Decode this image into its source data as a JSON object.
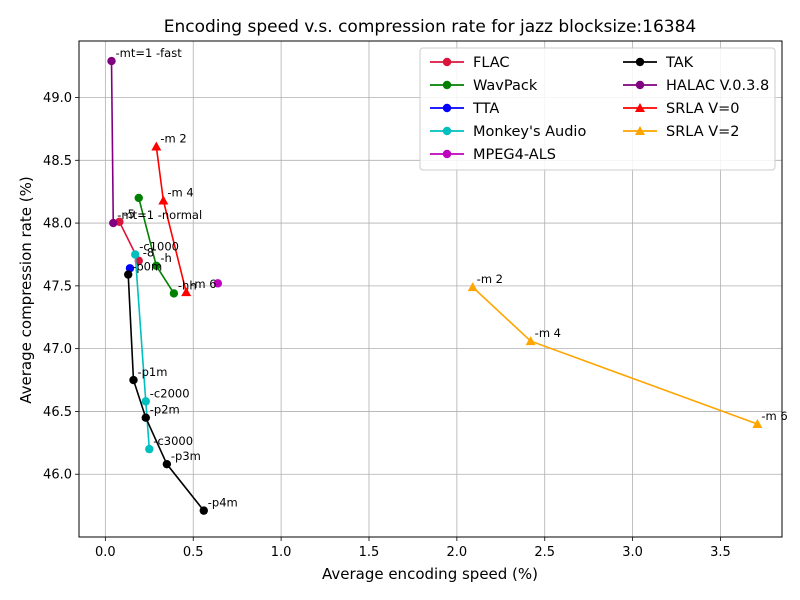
{
  "chart_data": {
    "type": "line",
    "title": "Encoding speed v.s. compression rate for jazz blocksize:16384",
    "xlabel": "Average encoding speed (%)",
    "ylabel": "Average compression rate (%)",
    "xlim": [
      -0.15,
      3.85
    ],
    "ylim": [
      45.5,
      49.45
    ],
    "xticks": [
      "0.0",
      "0.5",
      "1.0",
      "1.5",
      "2.0",
      "2.5",
      "3.0",
      "3.5"
    ],
    "yticks": [
      "46.0",
      "46.5",
      "47.0",
      "47.5",
      "48.0",
      "48.5",
      "49.0"
    ],
    "grid": true,
    "legend_position": "upper-right",
    "series": [
      {
        "name": "FLAC",
        "color": "#dc143c",
        "marker": "circle",
        "points": [
          {
            "x": 0.08,
            "y": 48.01,
            "label": "-5"
          },
          {
            "x": 0.19,
            "y": 47.7,
            "label": "-8"
          }
        ]
      },
      {
        "name": "WavPack",
        "color": "#008000",
        "marker": "circle",
        "points": [
          {
            "x": 0.19,
            "y": 48.2,
            "label": ""
          },
          {
            "x": 0.29,
            "y": 47.66,
            "label": "-h"
          },
          {
            "x": 0.39,
            "y": 47.44,
            "label": "-hh"
          }
        ]
      },
      {
        "name": "TTA",
        "color": "#0000ff",
        "marker": "circle",
        "points": [
          {
            "x": 0.14,
            "y": 47.64,
            "label": ""
          }
        ]
      },
      {
        "name": "Monkey's Audio",
        "color": "#00bfbf",
        "marker": "circle",
        "points": [
          {
            "x": 0.17,
            "y": 47.75,
            "label": "-c1000"
          },
          {
            "x": 0.23,
            "y": 46.58,
            "label": "-c2000"
          },
          {
            "x": 0.25,
            "y": 46.2,
            "label": "-c3000"
          }
        ]
      },
      {
        "name": "MPEG4-ALS",
        "color": "#bf00bf",
        "marker": "circle",
        "points": [
          {
            "x": 0.64,
            "y": 47.52,
            "label": ""
          }
        ]
      },
      {
        "name": "TAK",
        "color": "#000000",
        "marker": "circle",
        "points": [
          {
            "x": 0.13,
            "y": 47.59,
            "label": "-p0m"
          },
          {
            "x": 0.16,
            "y": 46.75,
            "label": "-p1m"
          },
          {
            "x": 0.23,
            "y": 46.45,
            "label": "-p2m"
          },
          {
            "x": 0.35,
            "y": 46.08,
            "label": "-p3m"
          },
          {
            "x": 0.56,
            "y": 45.71,
            "label": "-p4m"
          }
        ]
      },
      {
        "name": "HALAC V.0.3.8",
        "color": "#800080",
        "marker": "circle",
        "points": [
          {
            "x": 0.035,
            "y": 49.29,
            "label": "-mt=1 -fast"
          },
          {
            "x": 0.045,
            "y": 48.0,
            "label": "-mt=1 -normal"
          }
        ]
      },
      {
        "name": "SRLA V=0",
        "color": "#ff0000",
        "marker": "triangle",
        "points": [
          {
            "x": 0.29,
            "y": 48.61,
            "label": "-m 2"
          },
          {
            "x": 0.33,
            "y": 48.18,
            "label": "-m 4"
          },
          {
            "x": 0.46,
            "y": 47.45,
            "label": "-m 6"
          }
        ]
      },
      {
        "name": "SRLA V=2",
        "color": "#ffa500",
        "marker": "triangle",
        "points": [
          {
            "x": 2.09,
            "y": 47.49,
            "label": "-m 2"
          },
          {
            "x": 2.42,
            "y": 47.06,
            "label": "-m 4"
          },
          {
            "x": 3.71,
            "y": 46.4,
            "label": "-m 6"
          }
        ]
      }
    ]
  }
}
